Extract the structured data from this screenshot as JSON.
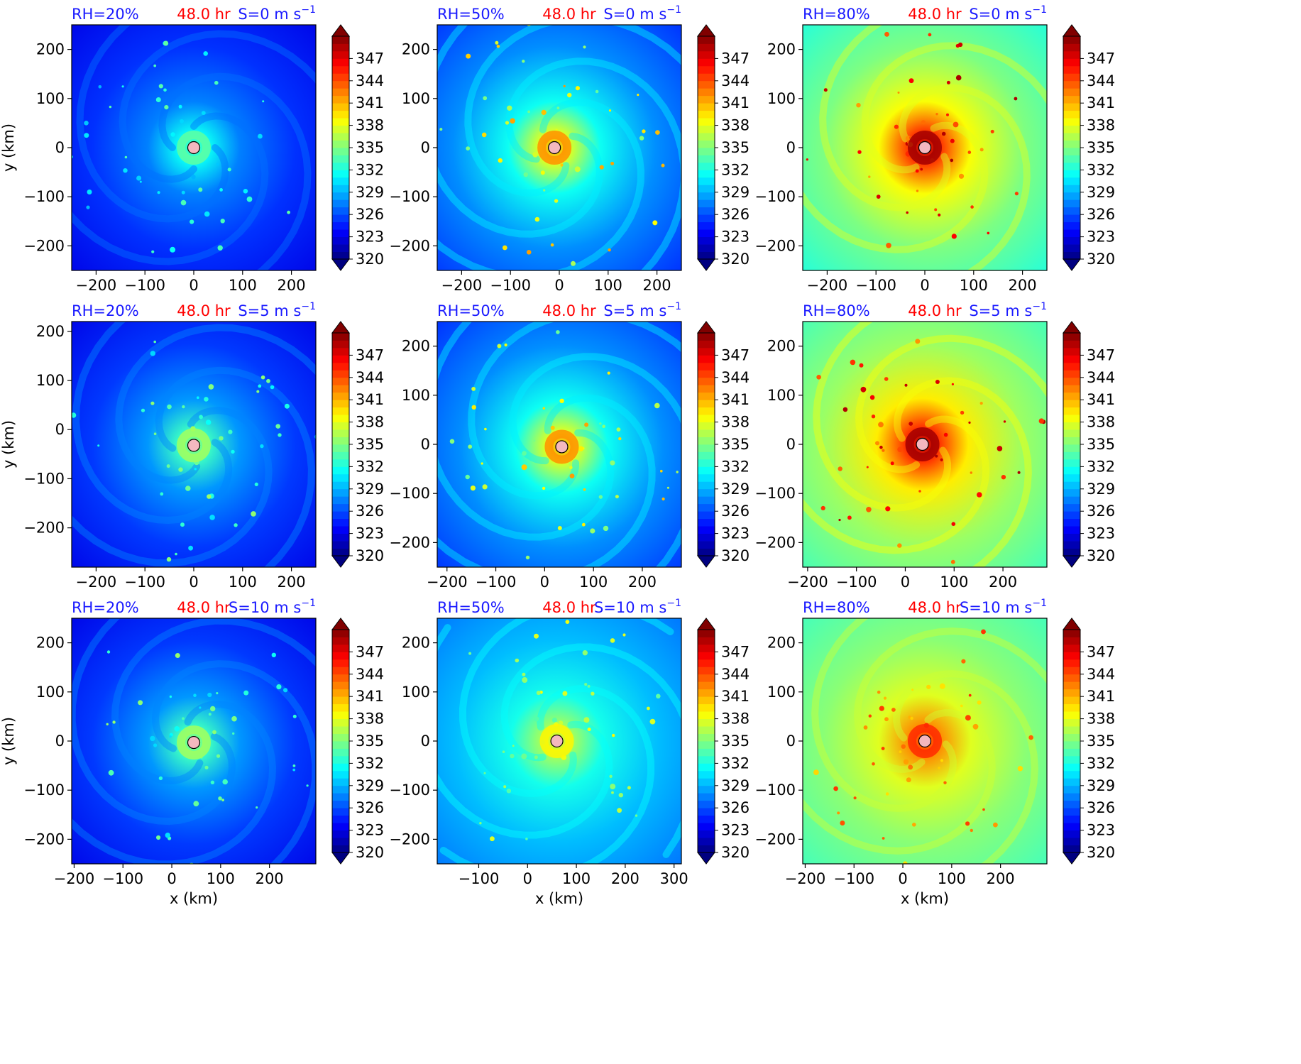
{
  "chart_data": {
    "type": "heatmap",
    "shared": {
      "time_label": "48.0 hr",
      "xlabel": "x (km)",
      "ylabel": "y (km)",
      "colorbar": {
        "min": 320,
        "max": 350,
        "step": 1,
        "tick_labels": [
          "320",
          "323",
          "326",
          "329",
          "332",
          "335",
          "338",
          "341",
          "344",
          "347"
        ],
        "extend": "both",
        "colormap": "jet"
      },
      "colors": {
        "rh_text": "#1a1aff",
        "time_text": "#ff0000",
        "marker_fill": "#f4b8bf"
      }
    },
    "panels": [
      {
        "row": 0,
        "col": 0,
        "rh": "RH=20%",
        "shear": "S=0 m s",
        "exp": "−1",
        "xlim": [
          -250,
          250
        ],
        "ylim": [
          -250,
          250
        ],
        "xticks": [
          "−200",
          "−100",
          "0",
          "100",
          "200"
        ],
        "xtick_values": [
          -200,
          -100,
          0,
          100,
          200
        ],
        "yticks": [
          "200",
          "100",
          "0",
          "−100",
          "−200"
        ],
        "ytick_values": [
          200,
          100,
          0,
          -100,
          -200
        ],
        "center": [
          0,
          0
        ],
        "background": 324,
        "core": 334
      },
      {
        "row": 0,
        "col": 1,
        "rh": "RH=50%",
        "shear": "S=0 m s",
        "exp": "−1",
        "xlim": [
          -250,
          250
        ],
        "ylim": [
          -250,
          250
        ],
        "xticks": [
          "−200",
          "−100",
          "0",
          "100",
          "200"
        ],
        "xtick_values": [
          -200,
          -100,
          0,
          100,
          200
        ],
        "yticks": [
          "200",
          "100",
          "0",
          "−100",
          "−200"
        ],
        "ytick_values": [
          200,
          100,
          0,
          -100,
          -200
        ],
        "center": [
          -10,
          0
        ],
        "background": 326,
        "core": 342
      },
      {
        "row": 0,
        "col": 2,
        "rh": "RH=80%",
        "shear": "S=0 m s",
        "exp": "−1",
        "xlim": [
          -250,
          250
        ],
        "ylim": [
          -250,
          250
        ],
        "xticks": [
          "−200",
          "−100",
          "0",
          "100",
          "200"
        ],
        "xtick_values": [
          -200,
          -100,
          0,
          100,
          200
        ],
        "yticks": [
          "200",
          "100",
          "0",
          "−100",
          "−200"
        ],
        "ytick_values": [
          200,
          100,
          0,
          -100,
          -200
        ],
        "center": [
          0,
          0
        ],
        "background": 333,
        "core": 349
      },
      {
        "row": 1,
        "col": 0,
        "rh": "RH=20%",
        "shear": "S=5 m s",
        "exp": "−1",
        "xlim": [
          -250,
          250
        ],
        "ylim": [
          -280,
          220
        ],
        "xticks": [
          "−200",
          "−100",
          "0",
          "100",
          "200"
        ],
        "xtick_values": [
          -200,
          -100,
          0,
          100,
          200
        ],
        "yticks": [
          "200",
          "100",
          "0",
          "−100",
          "−200"
        ],
        "ytick_values": [
          200,
          100,
          0,
          -100,
          -200
        ],
        "center": [
          0,
          -32
        ],
        "background": 324,
        "core": 336
      },
      {
        "row": 1,
        "col": 1,
        "rh": "RH=50%",
        "shear": "S=5 m s",
        "exp": "−1",
        "xlim": [
          -220,
          280
        ],
        "ylim": [
          -250,
          250
        ],
        "xticks": [
          "−200",
          "−100",
          "0",
          "100",
          "200"
        ],
        "xtick_values": [
          -200,
          -100,
          0,
          100,
          200
        ],
        "yticks": [
          "200",
          "100",
          "0",
          "−100",
          "−200"
        ],
        "ytick_values": [
          200,
          100,
          0,
          -100,
          -200
        ],
        "center": [
          35,
          -5
        ],
        "background": 326,
        "core": 342
      },
      {
        "row": 1,
        "col": 2,
        "rh": "RH=80%",
        "shear": "S=5 m s",
        "exp": "−1",
        "xlim": [
          -210,
          290
        ],
        "ylim": [
          -250,
          250
        ],
        "xticks": [
          "−200",
          "−100",
          "0",
          "100",
          "200"
        ],
        "xtick_values": [
          -200,
          -100,
          0,
          100,
          200
        ],
        "yticks": [
          "200",
          "100",
          "0",
          "−100",
          "−200"
        ],
        "ytick_values": [
          200,
          100,
          0,
          -100,
          -200
        ],
        "center": [
          35,
          0
        ],
        "background": 334,
        "core": 349
      },
      {
        "row": 2,
        "col": 0,
        "rh": "RH=20%",
        "shear": "S=10 m s",
        "exp": "−1",
        "xlim": [
          -205,
          295
        ],
        "ylim": [
          -250,
          250
        ],
        "xticks": [
          "−200",
          "−100",
          "0",
          "100",
          "200"
        ],
        "xtick_values": [
          -200,
          -100,
          0,
          100,
          200
        ],
        "yticks": [
          "200",
          "100",
          "0",
          "−100",
          "−200"
        ],
        "ytick_values": [
          200,
          100,
          0,
          -100,
          -200
        ],
        "center": [
          45,
          -3
        ],
        "background": 324,
        "core": 336
      },
      {
        "row": 2,
        "col": 1,
        "rh": "RH=50%",
        "shear": "S=10 m s",
        "exp": "−1",
        "xlim": [
          -185,
          315
        ],
        "ylim": [
          -250,
          250
        ],
        "xticks": [
          "−100",
          "0",
          "100",
          "200",
          "300"
        ],
        "xtick_values": [
          -100,
          0,
          100,
          200,
          300
        ],
        "yticks": [
          "200",
          "100",
          "0",
          "−100",
          "−200"
        ],
        "ytick_values": [
          200,
          100,
          0,
          -100,
          -200
        ],
        "center": [
          60,
          0
        ],
        "background": 328,
        "core": 339
      },
      {
        "row": 2,
        "col": 2,
        "rh": "RH=80%",
        "shear": "S=10 m s",
        "exp": "−1",
        "xlim": [
          -205,
          295
        ],
        "ylim": [
          -250,
          250
        ],
        "xticks": [
          "−200",
          "−100",
          "0",
          "100",
          "200"
        ],
        "xtick_values": [
          -200,
          -100,
          0,
          100,
          200
        ],
        "yticks": [
          "200",
          "100",
          "0",
          "−100",
          "−200"
        ],
        "ytick_values": [
          200,
          100,
          0,
          -100,
          -200
        ],
        "center": [
          45,
          0
        ],
        "background": 334,
        "core": 345
      }
    ]
  }
}
